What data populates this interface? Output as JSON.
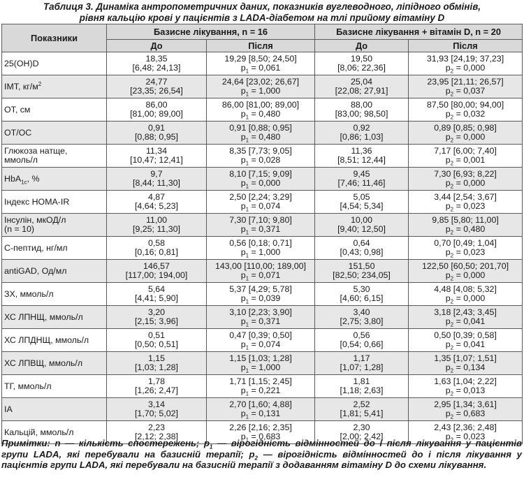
{
  "caption": {
    "line1": "Таблиця 3. Динаміка антропометричних даних, показників вуглеводного, ліпідного обмінів,",
    "line2": "рівня кальцію крові у пацієнтів з LADA-діабетом на тлі прийому вітаміну D"
  },
  "table": {
    "col_indicator": "Показники",
    "group1": "Базисне лікування, n = 16",
    "group2": "Базисне лікування + вітамін D, n = 20",
    "before": "До",
    "after": "Після",
    "rows": [
      {
        "name": "25(ОН)D",
        "g1_before": [
          "18,35",
          "[6,48; 24,13]"
        ],
        "g1_after": [
          "19,29 [8,50; 24,50]",
          "p",
          "1",
          " = 0,061"
        ],
        "g2_before": [
          "19,50",
          "[8,06; 22,36]"
        ],
        "g2_after": [
          "31,93 [24,19; 37,23]",
          "p",
          "2",
          " = 0,000"
        ]
      },
      {
        "name": "ІМТ, кг/м",
        "name_sup": "2",
        "g1_before": [
          "24,77",
          "[23,35; 26,54]"
        ],
        "g1_after": [
          "24,64 [23,02; 26,67]",
          "p",
          "1",
          " = 1,000"
        ],
        "g2_before": [
          "25,04",
          "[22,08; 27,91]"
        ],
        "g2_after": [
          "23,95 [21,11; 26,57]",
          "p",
          "2",
          " = 0,037"
        ]
      },
      {
        "name": "ОТ, см",
        "g1_before": [
          "86,00",
          "[81,00; 89,00]"
        ],
        "g1_after": [
          "86,00 [81,00; 89,00]",
          "p",
          "1",
          " = 0,480"
        ],
        "g2_before": [
          "88,00",
          "[83,00; 98,50]"
        ],
        "g2_after": [
          "87,50 [80,00; 94,00]",
          "p",
          "2",
          " = 0,032"
        ]
      },
      {
        "name": "ОТ/ОС",
        "g1_before": [
          "0,91",
          "[0,88; 0,95]"
        ],
        "g1_after": [
          "0,91 [0,88; 0,95]",
          "p",
          "1",
          " = 0,480"
        ],
        "g2_before": [
          "0,92",
          "[0,86; 1,03]"
        ],
        "g2_after": [
          "0,89 [0,85; 0,98]",
          "p",
          "2",
          " = 0,000"
        ]
      },
      {
        "name": "Глюкоза натще,",
        "name2": "ммоль/л",
        "g1_before": [
          "11,34",
          "[10,47; 12,41]"
        ],
        "g1_after": [
          "8,35 [7,73; 9,05]",
          "p",
          "1",
          " = 0,028"
        ],
        "g2_before": [
          "11,36",
          "[8,51; 12,44]"
        ],
        "g2_after": [
          "7,17 [6,00; 7,40]",
          "p",
          "2",
          " = 0,001"
        ]
      },
      {
        "name": "HbA",
        "name_sub": "1c",
        "name_suffix": ", %",
        "g1_before": [
          "9,7",
          "[8,44; 11,30]"
        ],
        "g1_after": [
          "8,10 [7,15; 9,09]",
          "p",
          "1",
          " = 0,000"
        ],
        "g2_before": [
          "9,45",
          "[7,46; 11,46]"
        ],
        "g2_after": [
          "7,30 [6,93; 8,22]",
          "p",
          "2",
          " = 0,000"
        ]
      },
      {
        "name": "Індекс НОМА-IR",
        "g1_before": [
          "4,87",
          "[4,64; 5,23]"
        ],
        "g1_after": [
          "2,50 [2,24; 3,29]",
          "p",
          "1",
          " = 0,074"
        ],
        "g2_before": [
          "5,05",
          "[4,54; 5,34]"
        ],
        "g2_after": [
          "3,44 [2,54; 3,67]",
          "p",
          "2",
          " = 0,023"
        ]
      },
      {
        "name": "Інсулін, мкОД/л",
        "name2": "(n = 10)",
        "g1_before": [
          "11,00",
          "[9,25; 11,30]"
        ],
        "g1_after": [
          "7,30 [7,10; 9,80]",
          "p",
          "1",
          " = 0,371"
        ],
        "g2_before": [
          "10,00",
          "[9,40; 12,50]"
        ],
        "g2_after": [
          "9,85 [5,80; 11,00]",
          "p",
          "2",
          " = 0,480"
        ]
      },
      {
        "name": "С-пептид, нг/мл",
        "g1_before": [
          "0,58",
          "[0,16; 0,81]"
        ],
        "g1_after": [
          "0,56 [0,18; 0,71]",
          "p",
          "1",
          " = 1,000"
        ],
        "g2_before": [
          "0,64",
          "[0,43; 0,98]"
        ],
        "g2_after": [
          "0,70 [0,49; 1,04]",
          "p",
          "2",
          " = 0,023"
        ]
      },
      {
        "name": "antiGAD, Од/мл",
        "g1_before": [
          "146,57",
          "[117,00; 194,00]"
        ],
        "g1_after": [
          "143,00 [110,00; 189,00]",
          "p",
          "1",
          " = 0,071"
        ],
        "g2_before": [
          "151,50",
          "[82,50; 234,05]"
        ],
        "g2_after": [
          "122,50 [60,50; 201,70]",
          "p",
          "2",
          " = 0,000"
        ]
      },
      {
        "name": "ЗХ, ммоль/л",
        "g1_before": [
          "5,64",
          "[4,41; 5,90]"
        ],
        "g1_after": [
          "5,37 [4,29; 5,78]",
          "p",
          "1",
          " = 0,039"
        ],
        "g2_before": [
          "5,30",
          "[4,60; 6,15]"
        ],
        "g2_after": [
          "4,48 [4,08; 5,32]",
          "p",
          "2",
          " = 0,000"
        ]
      },
      {
        "name": "ХС ЛПНЩ, ммоль/л",
        "g1_before": [
          "3,20",
          "[2,15; 3,96]"
        ],
        "g1_after": [
          "3,10 [2,23; 3,90]",
          "p",
          "1",
          " = 0,371"
        ],
        "g2_before": [
          "3,40",
          "[2,75; 3,80]"
        ],
        "g2_after": [
          "3,18 [2,43; 3,45]",
          "p",
          "2",
          " = 0,041"
        ]
      },
      {
        "name": "ХС ЛПДНЩ, ммоль/л",
        "g1_before": [
          "0,51",
          "[0,50; 0,51]"
        ],
        "g1_after": [
          "0,47 [0,39; 0,50]",
          "p",
          "1",
          " = 0,074"
        ],
        "g2_before": [
          "0,56",
          "[0,54; 0,66]"
        ],
        "g2_after": [
          "0,50 [0,39; 0,58]",
          "p",
          "2",
          " = 0,041"
        ]
      },
      {
        "name": "ХС ЛПВЩ, ммоль/л",
        "g1_before": [
          "1,15",
          "[1,03; 1,28]"
        ],
        "g1_after": [
          "1,15 [1,03; 1,28]",
          "p",
          "1",
          " = 1,000"
        ],
        "g2_before": [
          "1,17",
          "[1,07; 1,28]"
        ],
        "g2_after": [
          "1,35 [1,07; 1,51]",
          "p",
          "2",
          " = 0,134"
        ]
      },
      {
        "name": "ТГ, ммоль/л",
        "g1_before": [
          "1,78",
          "[1,26; 2,47]"
        ],
        "g1_after": [
          "1,71 [1,15; 2,45]",
          "p",
          "1",
          " = 0,221"
        ],
        "g2_before": [
          "1,81",
          "[1,18; 2,63]"
        ],
        "g2_after": [
          "1,63 [1,04; 2,22]",
          "p",
          "2",
          " = 0,013"
        ]
      },
      {
        "name": "ІА",
        "g1_before": [
          "3,14",
          "[1,70; 5,02]"
        ],
        "g1_after": [
          "2,70 [1,60; 4,88]",
          "p",
          "1",
          " = 0,131"
        ],
        "g2_before": [
          "2,52",
          "[1,81; 5,41]"
        ],
        "g2_after": [
          "2,95 [1,34; 3,61]",
          "p",
          "2",
          " = 0,683"
        ]
      },
      {
        "name": "Кальцій, ммоль/л",
        "g1_before": [
          "2,23",
          "[2,12; 2,38]"
        ],
        "g1_after": [
          "2,26 [2,16; 2,35]",
          "p",
          "1",
          " = 0,683"
        ],
        "g2_before": [
          "2,30",
          "[2,00; 2,42]"
        ],
        "g2_after": [
          "2,43 [2,36; 2,48]",
          "p",
          "2",
          " = 0,023"
        ]
      }
    ]
  },
  "notes": {
    "part1": "Примітки: n — кількість спостережень; p",
    "sub1": "1",
    "part2": " — вірогідність відмінностей до і після лікування у пацієнтів групи LADA, які перебували на базисній терапії; p",
    "sub2": "2",
    "part3": " — вірогідність відмінностей до і після лікування у пацієнтів групи LADA, які перебували на базисній терапії з додаванням вітаміну D до схеми лікування."
  }
}
